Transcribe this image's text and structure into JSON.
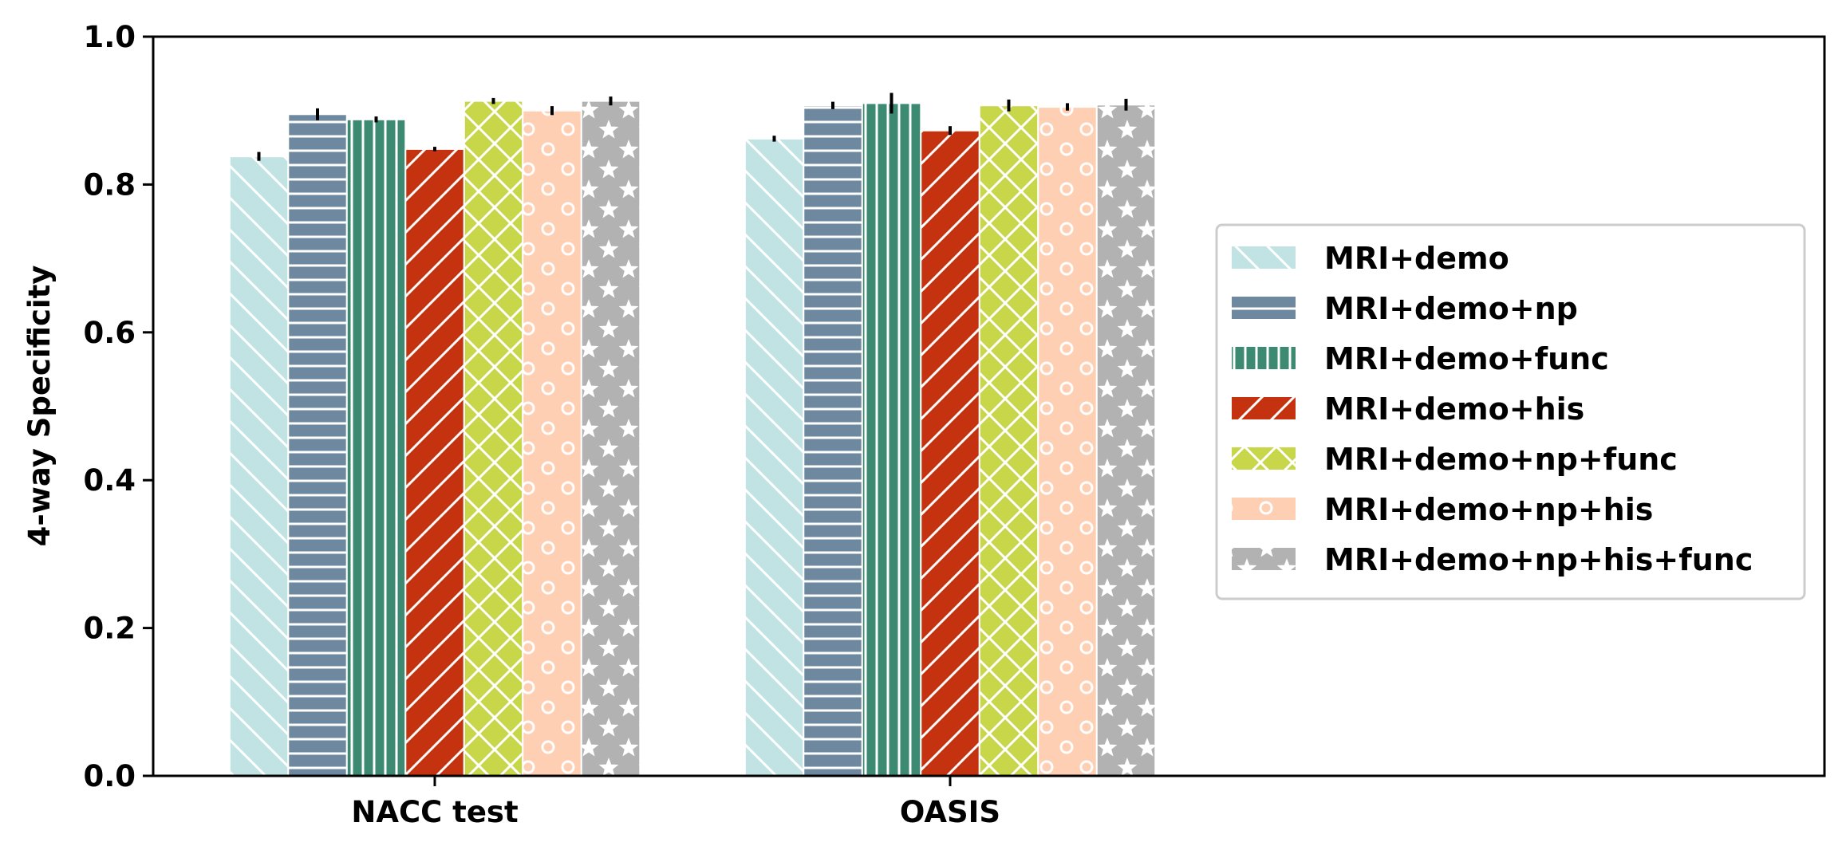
{
  "chart_data": {
    "type": "bar",
    "title": "",
    "xlabel": "",
    "ylabel": "4-way Specificity",
    "ylim": [
      0,
      1.0
    ],
    "yticks": [
      "0.0",
      "0.2",
      "0.4",
      "0.6",
      "0.8",
      "1.0"
    ],
    "grid": false,
    "legend_position": "right",
    "categories": [
      "NACC test",
      "OASIS"
    ],
    "series": [
      {
        "name": "MRI+demo",
        "values": [
          0.838,
          0.862
        ],
        "errors": [
          0.006,
          0.004
        ],
        "color": "#c2e3e3",
        "pattern": "backslash"
      },
      {
        "name": "MRI+demo+np",
        "values": [
          0.895,
          0.907
        ],
        "errors": [
          0.008,
          0.005
        ],
        "color": "#6e88a0",
        "pattern": "horizontal"
      },
      {
        "name": "MRI+demo+func",
        "values": [
          0.888,
          0.91
        ],
        "errors": [
          0.004,
          0.014
        ],
        "color": "#3c8a72",
        "pattern": "vertical"
      },
      {
        "name": "MRI+demo+his",
        "values": [
          0.848,
          0.873
        ],
        "errors": [
          0.003,
          0.006
        ],
        "color": "#c4320f",
        "pattern": "slash"
      },
      {
        "name": "MRI+demo+np+func",
        "values": [
          0.913,
          0.907
        ],
        "errors": [
          0.004,
          0.008
        ],
        "color": "#c8d64a",
        "pattern": "cross"
      },
      {
        "name": "MRI+demo+np+his",
        "values": [
          0.9,
          0.905
        ],
        "errors": [
          0.006,
          0.005
        ],
        "color": "#ffcfb4",
        "pattern": "circles"
      },
      {
        "name": "MRI+demo+np+his+func",
        "values": [
          0.913,
          0.908
        ],
        "errors": [
          0.006,
          0.008
        ],
        "color": "#b2b2b2",
        "pattern": "stars"
      }
    ]
  }
}
